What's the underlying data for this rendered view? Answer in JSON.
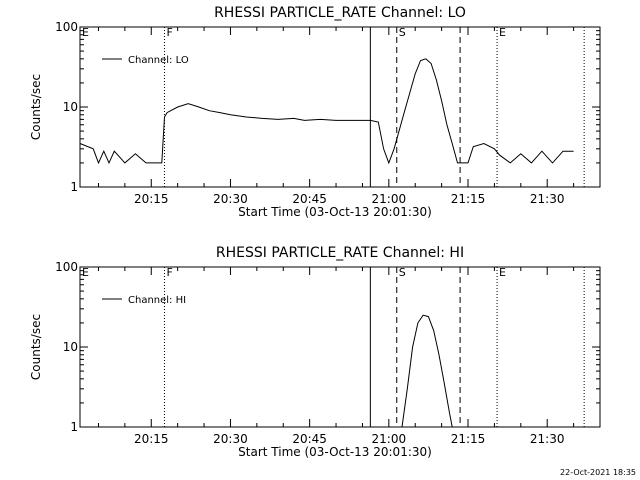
{
  "footer_stamp": "22-Oct-2021 18:35",
  "chart_data": [
    {
      "type": "line",
      "title": "RHESSI PARTICLE_RATE Channel: LO",
      "xlabel": "Start Time (03-Oct-13 20:01:30)",
      "ylabel": "Counts/sec",
      "yscale": "log",
      "ylim": [
        1,
        100
      ],
      "yticks": [
        "1",
        "10",
        "100"
      ],
      "xlim": [
        "20:01:30",
        "21:40:00"
      ],
      "xticks": [
        "20:15",
        "20:30",
        "20:45",
        "21:00",
        "21:15",
        "21:30"
      ],
      "legend": "top-left",
      "events": [
        {
          "label": "E",
          "time": "20:01:30",
          "style": "none"
        },
        {
          "label": "F",
          "time": "20:17:30",
          "style": "dotted"
        },
        {
          "label": "",
          "time": "20:56:30",
          "style": "solid"
        },
        {
          "label": "S",
          "time": "21:01:30",
          "style": "dashed"
        },
        {
          "label": "",
          "time": "21:13:30",
          "style": "dashed"
        },
        {
          "label": "E",
          "time": "21:20:30",
          "style": "dotted"
        },
        {
          "label": "",
          "time": "21:37:00",
          "style": "dotted"
        }
      ],
      "series": [
        {
          "name": "Channel: LO",
          "x": [
            "20:01:30",
            "20:04:00",
            "20:05:00",
            "20:06:00",
            "20:07:00",
            "20:08:00",
            "20:10:00",
            "20:12:00",
            "20:14:00",
            "20:16:00",
            "20:17:00",
            "20:17:30",
            "20:18:00",
            "20:20:00",
            "20:22:00",
            "20:24:00",
            "20:26:00",
            "20:28:00",
            "20:30:00",
            "20:33:00",
            "20:36:00",
            "20:39:00",
            "20:42:00",
            "20:44:00",
            "20:47:00",
            "20:50:00",
            "20:53:00",
            "20:55:00",
            "20:56:30",
            "20:58:00",
            "20:59:00",
            "21:00:00",
            "21:01:00",
            "21:03:00",
            "21:05:00",
            "21:06:00",
            "21:07:00",
            "21:08:00",
            "21:09:00",
            "21:10:00",
            "21:11:00",
            "21:12:00",
            "21:13:00",
            "21:14:00",
            "21:15:00",
            "21:16:00",
            "21:18:00",
            "21:20:00",
            "21:21:00",
            "21:23:00",
            "21:25:00",
            "21:27:00",
            "21:29:00",
            "21:31:00",
            "21:33:00",
            "21:35:00"
          ],
          "y": [
            3.5,
            3.0,
            2.0,
            2.8,
            2.0,
            2.8,
            2.0,
            2.6,
            2.0,
            2.0,
            2.0,
            7.5,
            8.5,
            10,
            11,
            10,
            9,
            8.5,
            8,
            7.5,
            7.2,
            7,
            7.2,
            6.8,
            7,
            6.8,
            6.8,
            6.8,
            6.8,
            6.5,
            3.0,
            2.0,
            3.0,
            9,
            26,
            38,
            40,
            35,
            22,
            12,
            6,
            3.5,
            2.0,
            2.0,
            2.0,
            3.2,
            3.5,
            3.0,
            2.5,
            2.0,
            2.6,
            2.0,
            2.8,
            2.0,
            2.8,
            2.8
          ]
        }
      ]
    },
    {
      "type": "line",
      "title": "RHESSI PARTICLE_RATE Channel: HI",
      "xlabel": "Start Time (03-Oct-13 20:01:30)",
      "ylabel": "Counts/sec",
      "yscale": "log",
      "ylim": [
        1,
        100
      ],
      "yticks": [
        "1",
        "10",
        "100"
      ],
      "xlim": [
        "20:01:30",
        "21:40:00"
      ],
      "xticks": [
        "20:15",
        "20:30",
        "20:45",
        "21:00",
        "21:15",
        "21:30"
      ],
      "legend": "top-left",
      "events": [
        {
          "label": "E",
          "time": "20:01:30",
          "style": "none"
        },
        {
          "label": "F",
          "time": "20:17:30",
          "style": "dotted"
        },
        {
          "label": "",
          "time": "20:56:30",
          "style": "solid"
        },
        {
          "label": "S",
          "time": "21:01:30",
          "style": "dashed"
        },
        {
          "label": "",
          "time": "21:13:30",
          "style": "dashed"
        },
        {
          "label": "E",
          "time": "21:20:30",
          "style": "dotted"
        },
        {
          "label": "",
          "time": "21:37:00",
          "style": "dotted"
        }
      ],
      "series": [
        {
          "name": "Channel: HI",
          "x": [
            "21:02:30",
            "21:03:30",
            "21:04:30",
            "21:05:30",
            "21:06:30",
            "21:07:30",
            "21:08:30",
            "21:09:30",
            "21:10:30",
            "21:11:30",
            "21:12:00"
          ],
          "y": [
            1.0,
            3.0,
            10,
            20,
            25,
            24,
            16,
            8,
            3.5,
            1.5,
            1.0
          ]
        }
      ]
    }
  ]
}
